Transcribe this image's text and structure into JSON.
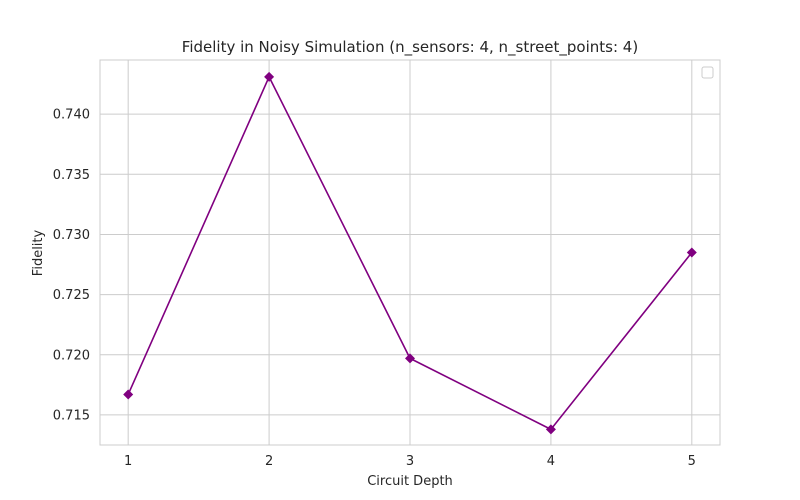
{
  "chart_data": {
    "type": "line",
    "title": "Fidelity in Noisy Simulation (n_sensors: 4, n_street_points: 4)",
    "xlabel": "Circuit Depth",
    "ylabel": "Fidelity",
    "x": [
      1,
      2,
      3,
      4,
      5
    ],
    "x_ticks": [
      "1",
      "2",
      "3",
      "4",
      "5"
    ],
    "xlim": [
      0.8,
      5.2
    ],
    "y_ticks": [
      "0.715",
      "0.720",
      "0.725",
      "0.730",
      "0.735",
      "0.740"
    ],
    "ylim": [
      0.7125,
      0.7445
    ],
    "grid": true,
    "legend": "top-right",
    "series": [
      {
        "values": [
          0.7167,
          0.7431,
          0.7197,
          0.7138,
          0.7285
        ],
        "color": "#800080",
        "marker": "diamond"
      }
    ]
  }
}
